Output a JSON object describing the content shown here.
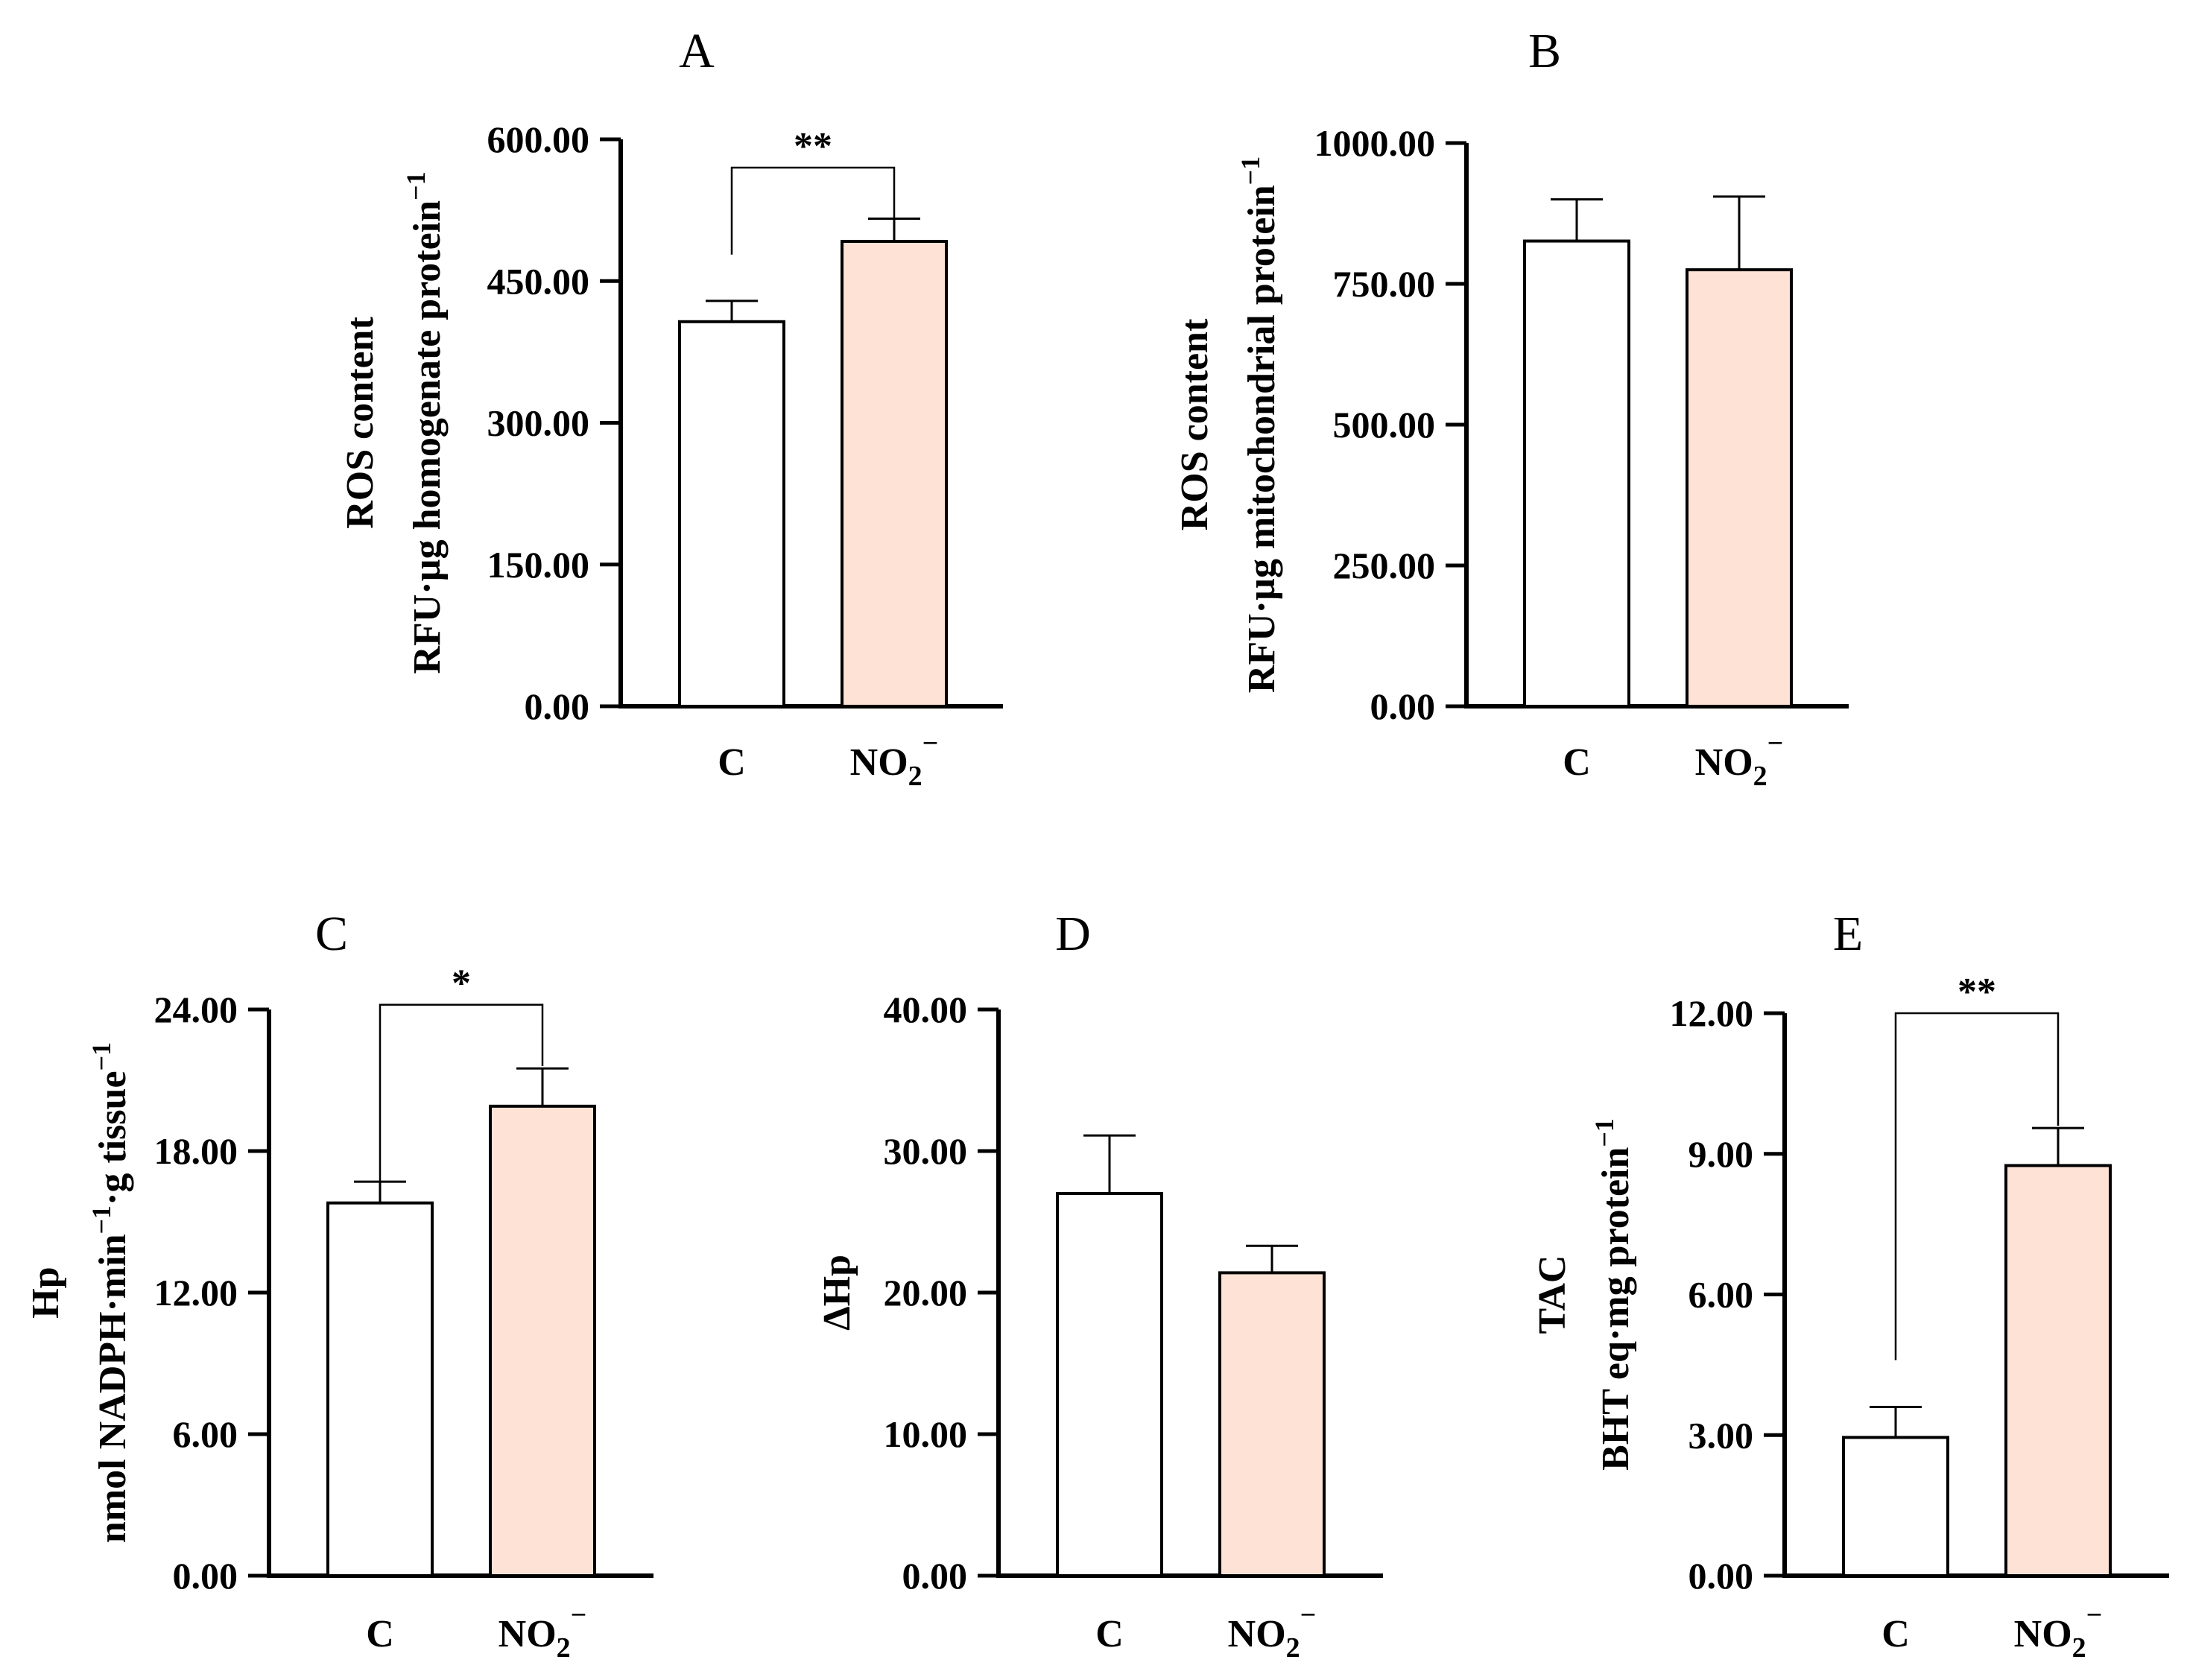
{
  "chart_data": [
    {
      "type": "bar",
      "panel": "A",
      "ylabel_line1": "ROS content",
      "ylabel_line2": "RFU·µg homogenate protein",
      "ylabel_sup": "−1",
      "categories": [
        {
          "label": "C",
          "sub": "",
          "sup": ""
        },
        {
          "label": "NO",
          "sub": "2",
          "sup": "−"
        }
      ],
      "values": [
        407,
        492
      ],
      "errors": [
        22,
        24
      ],
      "ylim": [
        0,
        600
      ],
      "yticks": [
        "0.00",
        "150.00",
        "300.00",
        "450.00",
        "600.00"
      ],
      "significance": {
        "label": "**",
        "from": 0,
        "to": 1,
        "bracket_y": 570,
        "left_end": 478,
        "right_end": 517
      },
      "colors": [
        "#ffffff",
        "#fde2d5"
      ]
    },
    {
      "type": "bar",
      "panel": "B",
      "ylabel_line1": "ROS content",
      "ylabel_line2": "RFU·µg mitochondrial protein",
      "ylabel_sup": "−1",
      "categories": [
        {
          "label": "C",
          "sub": "",
          "sup": ""
        },
        {
          "label": "NO",
          "sub": "2",
          "sup": "−"
        }
      ],
      "values": [
        826,
        775
      ],
      "errors": [
        74,
        130
      ],
      "ylim": [
        0,
        1000
      ],
      "yticks": [
        "0.00",
        "250.00",
        "500.00",
        "750.00",
        "1000.00"
      ],
      "significance": null,
      "colors": [
        "#ffffff",
        "#fde2d5"
      ]
    },
    {
      "type": "bar",
      "panel": "C",
      "ylabel_line1": "Hp",
      "ylabel_line2": "nmol NADPH·min",
      "ylabel_mid_sup": "−1",
      "ylabel_line2_b": "·g tissue",
      "ylabel_sup": "−1",
      "categories": [
        {
          "label": "C",
          "sub": "",
          "sup": ""
        },
        {
          "label": "NO",
          "sub": "2",
          "sup": "−"
        }
      ],
      "values": [
        15.8,
        19.9
      ],
      "errors": [
        0.9,
        1.6
      ],
      "ylim": [
        0,
        24
      ],
      "yticks": [
        "0.00",
        "6.00",
        "12.00",
        "18.00",
        "24.00"
      ],
      "significance": {
        "label": "*",
        "from": 0,
        "to": 1,
        "bracket_y": 24.2,
        "left_end": 16.7,
        "right_end": 21.6
      },
      "colors": [
        "#ffffff",
        "#fde2d5"
      ]
    },
    {
      "type": "bar",
      "panel": "D",
      "ylabel_line1": "ΔHp",
      "ylabel_line2": "",
      "ylabel_sup": "",
      "categories": [
        {
          "label": "C",
          "sub": "",
          "sup": ""
        },
        {
          "label": "NO",
          "sub": "2",
          "sup": "−"
        }
      ],
      "values": [
        27.0,
        21.4
      ],
      "errors": [
        4.1,
        1.9
      ],
      "ylim": [
        0,
        40
      ],
      "yticks": [
        "0.00",
        "10.00",
        "20.00",
        "30.00",
        "40.00"
      ],
      "significance": null,
      "colors": [
        "#ffffff",
        "#fde2d5"
      ]
    },
    {
      "type": "bar",
      "panel": "E",
      "ylabel_line1": "TAC",
      "ylabel_line2": "BHT eq·mg protein",
      "ylabel_sup": "−1",
      "categories": [
        {
          "label": "C",
          "sub": "",
          "sup": ""
        },
        {
          "label": "NO",
          "sub": "2",
          "sup": "−"
        }
      ],
      "values": [
        2.95,
        8.75
      ],
      "errors": [
        0.65,
        0.8
      ],
      "ylim": [
        0,
        12
      ],
      "yticks": [
        "0.00",
        "3.00",
        "6.00",
        "9.00",
        "12.00"
      ],
      "significance": {
        "label": "**",
        "from": 0,
        "to": 1,
        "bracket_y": 12.0,
        "left_end": 4.6,
        "right_end": 9.6
      },
      "colors": [
        "#ffffff",
        "#fde2d5"
      ]
    }
  ]
}
